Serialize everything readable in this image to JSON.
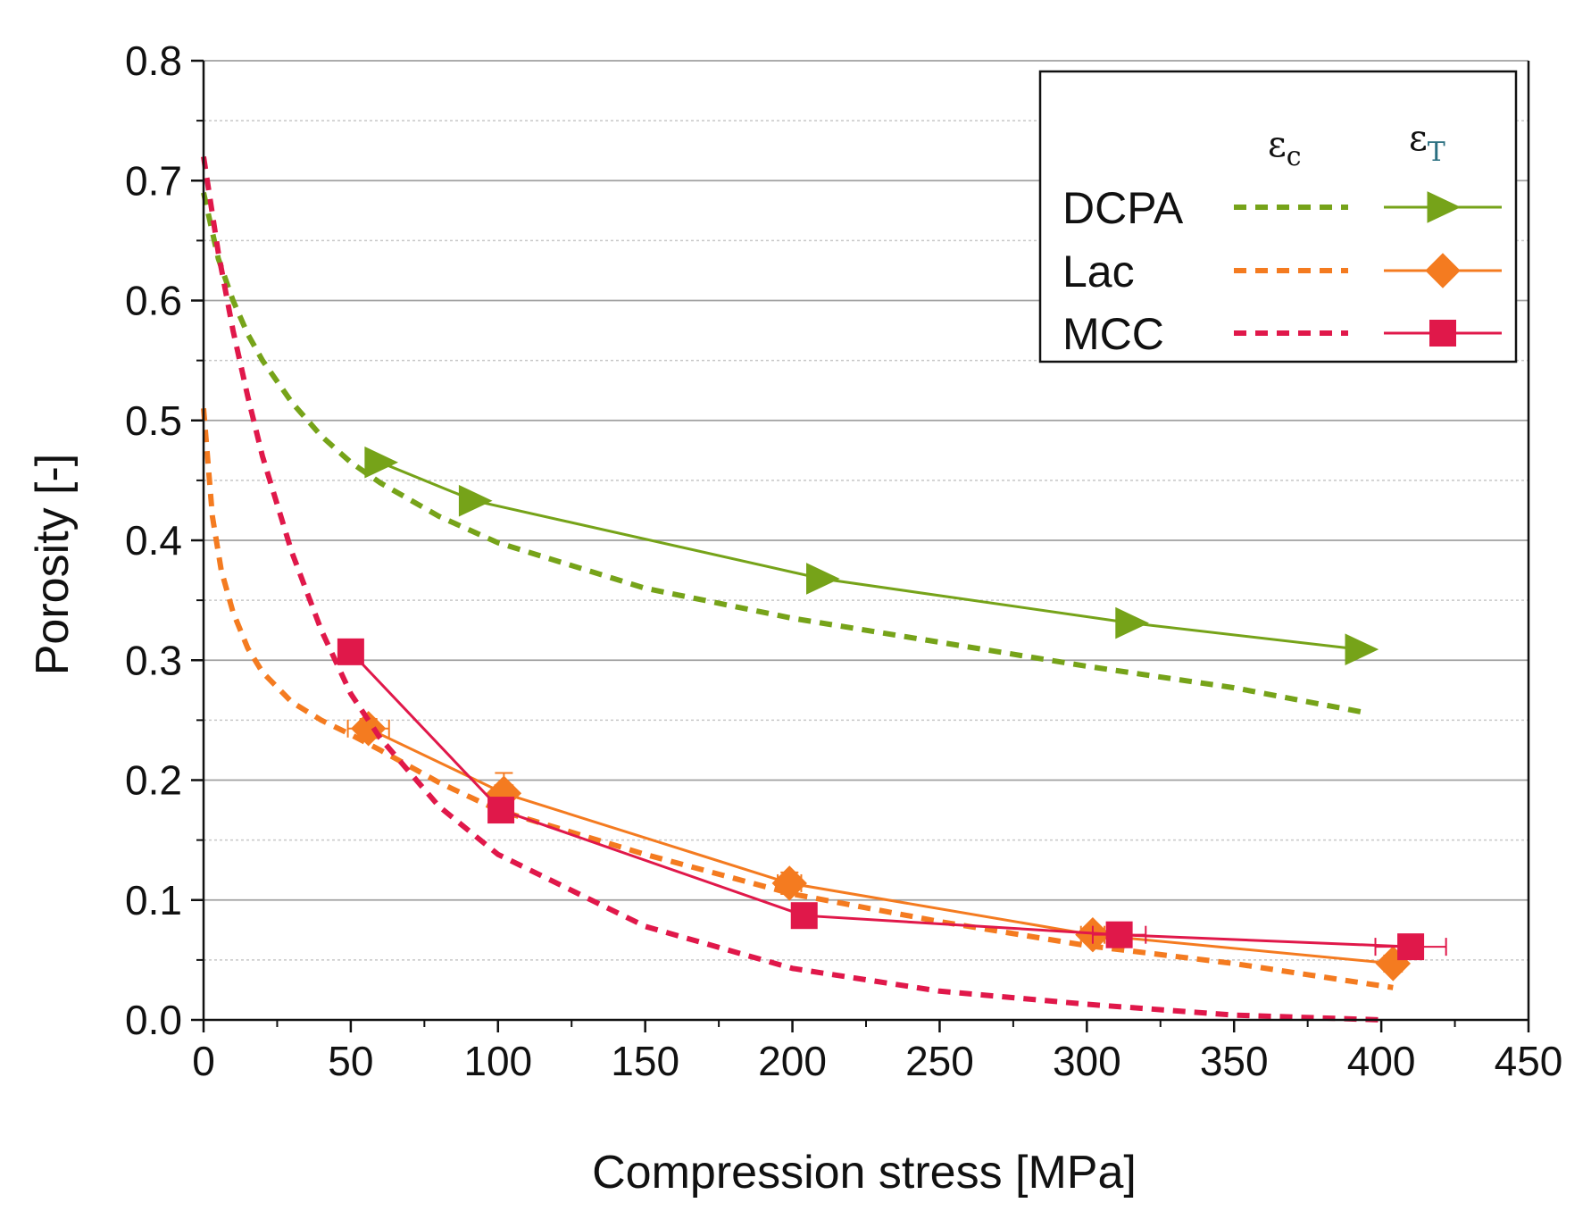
{
  "chart_data": {
    "type": "line",
    "xlabel": "Compression stress  [MPa]",
    "ylabel": "Porosity [-]",
    "xlim": [
      0,
      450
    ],
    "ylim": [
      0.0,
      0.8
    ],
    "xticks": [
      "0",
      "50",
      "100",
      "150",
      "200",
      "250",
      "300",
      "350",
      "400",
      "450"
    ],
    "yticks": [
      "0.0",
      "0.1",
      "0.2",
      "0.3",
      "0.4",
      "0.5",
      "0.6",
      "0.7",
      "0.8"
    ],
    "grid": "horizontal",
    "legend": {
      "placement": "top-right",
      "header_c": "ε",
      "header_c_sub": "c",
      "header_t": "ε",
      "header_t_sub": "T"
    },
    "series": [
      {
        "name": "DCPA",
        "color": "#76a319",
        "marker": "triangle-right",
        "eps_c": [
          [
            0,
            0.69
          ],
          [
            5,
            0.635
          ],
          [
            10,
            0.6
          ],
          [
            15,
            0.572
          ],
          [
            20,
            0.55
          ],
          [
            30,
            0.515
          ],
          [
            40,
            0.487
          ],
          [
            50,
            0.465
          ],
          [
            60,
            0.448
          ],
          [
            80,
            0.42
          ],
          [
            100,
            0.398
          ],
          [
            150,
            0.36
          ],
          [
            200,
            0.335
          ],
          [
            250,
            0.315
          ],
          [
            300,
            0.295
          ],
          [
            350,
            0.277
          ],
          [
            393,
            0.257
          ]
        ],
        "eps_t": [
          [
            60,
            0.465
          ],
          [
            92,
            0.433
          ],
          [
            210,
            0.368
          ],
          [
            315,
            0.331
          ],
          [
            393,
            0.309
          ]
        ]
      },
      {
        "name": "Lac",
        "color": "#f47b20",
        "marker": "diamond",
        "eps_c": [
          [
            0,
            0.51
          ],
          [
            3,
            0.42
          ],
          [
            6,
            0.375
          ],
          [
            10,
            0.34
          ],
          [
            15,
            0.31
          ],
          [
            20,
            0.29
          ],
          [
            30,
            0.265
          ],
          [
            40,
            0.25
          ],
          [
            50,
            0.238
          ],
          [
            60,
            0.225
          ],
          [
            80,
            0.198
          ],
          [
            100,
            0.175
          ],
          [
            150,
            0.138
          ],
          [
            200,
            0.105
          ],
          [
            250,
            0.082
          ],
          [
            300,
            0.062
          ],
          [
            350,
            0.047
          ],
          [
            404,
            0.027
          ]
        ],
        "eps_t": [
          [
            56,
            0.243
          ],
          [
            102,
            0.189
          ],
          [
            199,
            0.114
          ],
          [
            302,
            0.071
          ],
          [
            404,
            0.047
          ]
        ],
        "eps_t_yerr": [
          0.008,
          0.017,
          0.009,
          0.006,
          0.006
        ],
        "eps_t_xerr": [
          7,
          3,
          4,
          4,
          3
        ]
      },
      {
        "name": "MCC",
        "color": "#e0184a",
        "marker": "square",
        "eps_c": [
          [
            0,
            0.72
          ],
          [
            5,
            0.64
          ],
          [
            10,
            0.575
          ],
          [
            15,
            0.52
          ],
          [
            20,
            0.47
          ],
          [
            30,
            0.39
          ],
          [
            40,
            0.325
          ],
          [
            50,
            0.272
          ],
          [
            60,
            0.235
          ],
          [
            80,
            0.178
          ],
          [
            100,
            0.138
          ],
          [
            150,
            0.078
          ],
          [
            200,
            0.043
          ],
          [
            250,
            0.024
          ],
          [
            300,
            0.013
          ],
          [
            350,
            0.004
          ],
          [
            400,
            0.0
          ]
        ],
        "eps_t": [
          [
            50,
            0.307
          ],
          [
            101,
            0.175
          ],
          [
            204,
            0.087
          ],
          [
            311,
            0.071
          ],
          [
            410,
            0.061
          ]
        ],
        "eps_t_xerr": [
          0,
          0,
          0,
          9,
          12
        ]
      }
    ]
  }
}
